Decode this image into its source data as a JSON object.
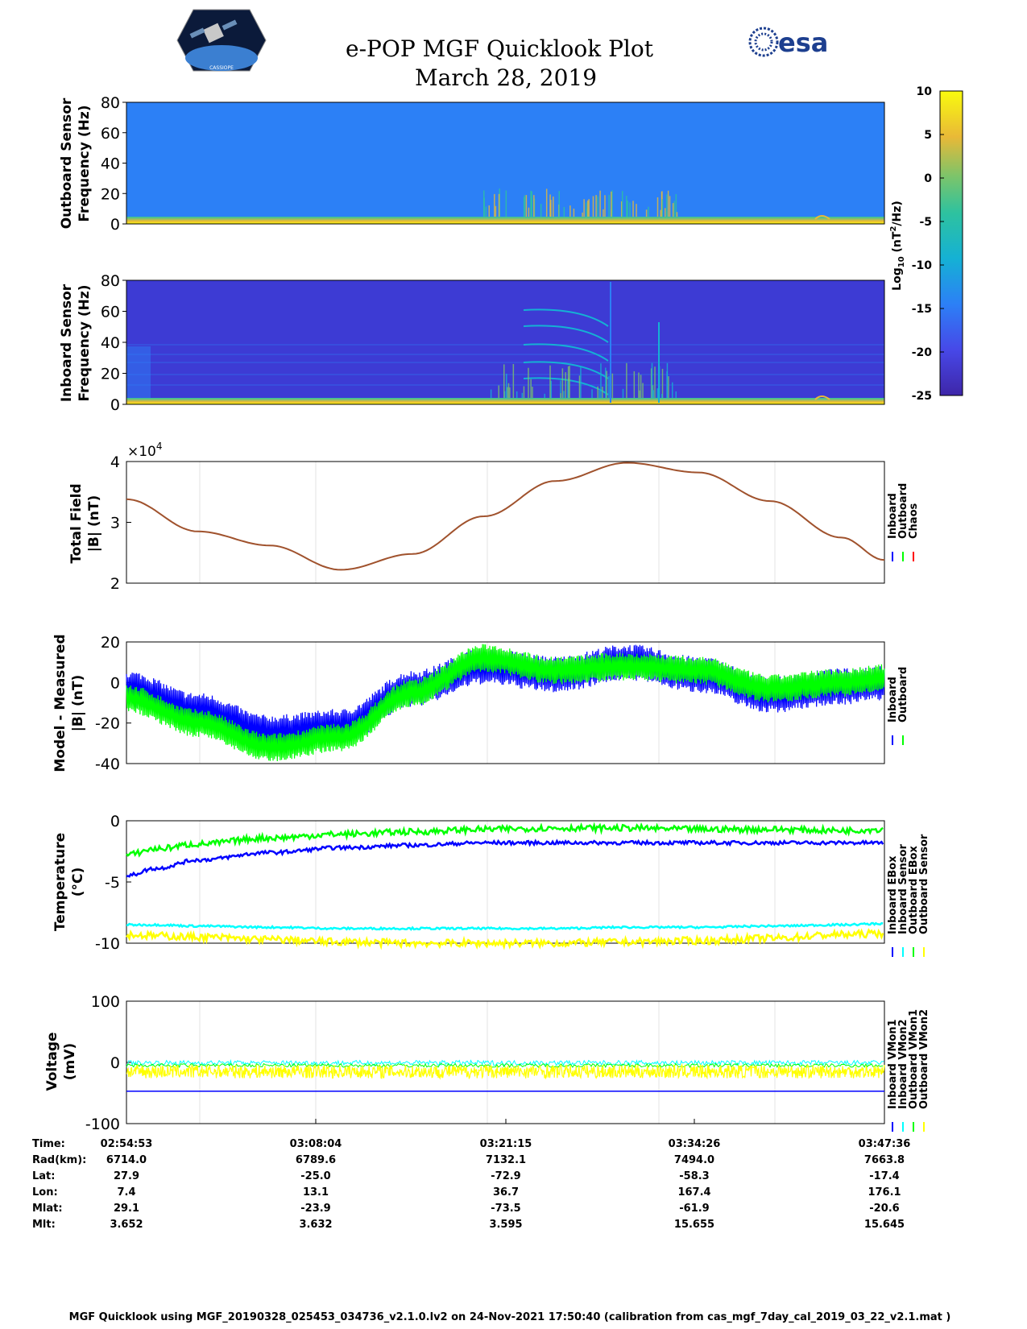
{
  "header": {
    "title": "e-POP MGF Quicklook Plot",
    "date": "March 28, 2019",
    "logo_left_text": "CASSIOPE",
    "logo_right_text": "esa"
  },
  "colors": {
    "inboard": "#0000ff",
    "outboard": "#00ff00",
    "chaos": "#ff0000",
    "cyan": "#00ffff",
    "yellow": "#ffff00",
    "total_field_line": "#a0522d"
  },
  "colorbar": {
    "label": "Log10 (nT^2/Hz)",
    "ticks": [
      "10",
      "5",
      "0",
      "-5",
      "-10",
      "-15",
      "-20",
      "-25"
    ],
    "range": [
      -25,
      10
    ]
  },
  "chart_data": [
    {
      "type": "heatmap",
      "ylabel": "Outboard Sensor Frequency (Hz)",
      "ylim": [
        0,
        80
      ],
      "yticks": [
        "80",
        "60",
        "40",
        "20",
        "0"
      ],
      "background_level": "approx -15 log10(nT^2/Hz)",
      "low_frequency_band_level": "approx 5 log10(nT^2/Hz)"
    },
    {
      "type": "heatmap",
      "ylabel": "Inboard Sensor Frequency (Hz)",
      "ylim": [
        0,
        80
      ],
      "yticks": [
        "80",
        "60",
        "40",
        "20",
        "0"
      ],
      "background_level": "approx -22 log10(nT^2/Hz)",
      "low_frequency_band_level": "approx 5 log10(nT^2/Hz)"
    },
    {
      "type": "line",
      "ylabel": "Total Field |B| (nT)",
      "exponent_label": "×10^4",
      "ylim": [
        2,
        4
      ],
      "yticks": [
        "4",
        "3",
        "2"
      ],
      "legend": [
        "Inboard",
        "Outboard",
        "Chaos"
      ],
      "x_minutes": [
        0,
        5,
        10,
        15,
        20,
        25,
        30,
        35,
        40,
        45,
        50,
        53
      ],
      "series": [
        {
          "name": "Chaos",
          "values": [
            3.38,
            2.85,
            2.62,
            2.22,
            2.48,
            3.1,
            3.68,
            3.98,
            3.82,
            3.35,
            2.75,
            2.38
          ]
        }
      ]
    },
    {
      "type": "line",
      "ylabel": "Model - Measured |B| (nT)",
      "ylim": [
        -40,
        20
      ],
      "yticks": [
        "20",
        "0",
        "-20",
        "-40"
      ],
      "legend": [
        "Inboard",
        "Outboard"
      ],
      "x_minutes": [
        0,
        5,
        10,
        15,
        20,
        25,
        30,
        35,
        40,
        45,
        50,
        53
      ],
      "series": [
        {
          "name": "Inboard",
          "values": [
            -3,
            -14,
            -25,
            -22,
            -3,
            8,
            4,
            10,
            4,
            -6,
            -2,
            0
          ],
          "spread": 9
        },
        {
          "name": "Outboard",
          "values": [
            -8,
            -20,
            -32,
            -27,
            -5,
            12,
            6,
            8,
            6,
            -3,
            0,
            2
          ],
          "spread": 7
        }
      ]
    },
    {
      "type": "line",
      "ylabel": "Temperature (°C)",
      "ylim": [
        -10,
        0
      ],
      "yticks": [
        "0",
        "-5",
        "-10"
      ],
      "legend": [
        "Inboard EBox",
        "Inboard Sensor",
        "Outboard EBox",
        "Outboard Sensor"
      ],
      "x_minutes": [
        0,
        2,
        5,
        10,
        15,
        20,
        25,
        30,
        35,
        40,
        45,
        50,
        53
      ],
      "series": [
        {
          "name": "Inboard EBox",
          "values": [
            -4.5,
            -3.9,
            -3.2,
            -2.6,
            -2.2,
            -2.0,
            -1.8,
            -1.8,
            -1.8,
            -1.8,
            -1.8,
            -1.8,
            -1.8
          ]
        },
        {
          "name": "Inboard Sensor",
          "values": [
            -8.5,
            -8.5,
            -8.6,
            -8.7,
            -8.8,
            -8.8,
            -8.8,
            -8.8,
            -8.7,
            -8.7,
            -8.6,
            -8.5,
            -8.4
          ]
        },
        {
          "name": "Outboard EBox",
          "values": [
            -2.8,
            -2.3,
            -1.9,
            -1.4,
            -1.1,
            -0.9,
            -0.7,
            -0.6,
            -0.6,
            -0.7,
            -0.7,
            -0.8,
            -0.7
          ]
        },
        {
          "name": "Outboard Sensor",
          "values": [
            -9.3,
            -9.4,
            -9.5,
            -9.7,
            -9.9,
            -10.0,
            -10.0,
            -10.0,
            -9.9,
            -9.8,
            -9.6,
            -9.3,
            -9.2
          ]
        }
      ]
    },
    {
      "type": "line",
      "ylabel": "Voltage (mV)",
      "ylim": [
        -100,
        100
      ],
      "yticks": [
        "100",
        "0",
        "-100"
      ],
      "legend": [
        "Inboard VMon1",
        "Inboard VMon2",
        "Outboard VMon1",
        "Outboard VMon2"
      ],
      "x_minutes": [
        0,
        53
      ],
      "series": [
        {
          "name": "Inboard VMon1",
          "values": [
            -47,
            -47
          ]
        },
        {
          "name": "Inboard VMon2",
          "values": [
            -5,
            -5
          ]
        },
        {
          "name": "Outboard VMon1",
          "values": [
            0,
            0
          ]
        },
        {
          "name": "Outboard VMon2",
          "values": [
            -15,
            -15
          ]
        }
      ]
    }
  ],
  "x_axis": {
    "tick_labels": [
      "02:54:53",
      "03:08:04",
      "03:21:15",
      "03:34:26",
      "03:47:36"
    ]
  },
  "ephemeris_table": {
    "row_labels": [
      "Time:",
      "Rad(km):",
      "Lat:",
      "Lon:",
      "Mlat:",
      "Mlt:"
    ],
    "columns": [
      [
        "02:54:53",
        "6714.0",
        "27.9",
        "7.4",
        "29.1",
        "3.652"
      ],
      [
        "03:08:04",
        "6789.6",
        "-25.0",
        "13.1",
        "-23.9",
        "3.632"
      ],
      [
        "03:21:15",
        "7132.1",
        "-72.9",
        "36.7",
        "-73.5",
        "3.595"
      ],
      [
        "03:34:26",
        "7494.0",
        "-58.3",
        "167.4",
        "-61.9",
        "15.655"
      ],
      [
        "03:47:36",
        "7663.8",
        "-17.4",
        "176.1",
        "-20.6",
        "15.645"
      ]
    ]
  },
  "footer": "MGF Quicklook using MGF_20190328_025453_034736_v2.1.0.lv2 on 24-Nov-2021 17:50:40 (calibration from cas_mgf_7day_cal_2019_03_22_v2.1.mat )"
}
